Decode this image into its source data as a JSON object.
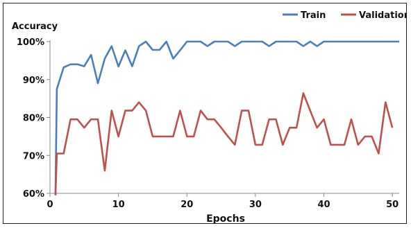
{
  "chart_data": {
    "type": "line",
    "title": "",
    "ylabel": "Accuracy",
    "xlabel": "Epochs",
    "xlim": [
      0,
      51
    ],
    "ylim": [
      60,
      100
    ],
    "x_ticks": [
      0,
      10,
      20,
      30,
      40,
      50
    ],
    "y_ticks": [
      60,
      70,
      80,
      90,
      100
    ],
    "y_tick_labels": [
      "60%",
      "70%",
      "80%",
      "90%",
      "100%"
    ],
    "grid": false,
    "legend_position": "top-right",
    "series": [
      {
        "name": "Train",
        "color": "#4a7ebf",
        "x": [
          0.8,
          1,
          2,
          3,
          4,
          5,
          6,
          7,
          8,
          9,
          10,
          11,
          12,
          13,
          14,
          15,
          16,
          17,
          18,
          19,
          20,
          21,
          22,
          23,
          24,
          25,
          26,
          27,
          28,
          29,
          30,
          31,
          32,
          33,
          34,
          35,
          36,
          37,
          38,
          39,
          40,
          41,
          42,
          43,
          44,
          45,
          46,
          47,
          48,
          49,
          50,
          51
        ],
        "values": [
          59.5,
          87.5,
          93.2,
          94,
          94,
          93.5,
          96.5,
          89,
          95.5,
          98.8,
          93.4,
          97.7,
          93.5,
          98.8,
          100,
          97.8,
          97.8,
          100,
          95.5,
          97.7,
          100,
          100,
          100,
          98.8,
          100,
          100,
          100,
          98.8,
          100,
          100,
          100,
          100,
          98.8,
          100,
          100,
          100,
          100,
          98.8,
          100,
          98.8,
          100,
          100,
          100,
          100,
          100,
          100,
          100,
          100,
          100,
          100,
          100,
          100
        ]
      },
      {
        "name": "Validation",
        "color": "#c0504d",
        "x": [
          0.8,
          1,
          2,
          3,
          4,
          5,
          6,
          7,
          8,
          9,
          10,
          11,
          12,
          13,
          14,
          15,
          16,
          17,
          18,
          19,
          20,
          21,
          22,
          23,
          24,
          25,
          26,
          27,
          28,
          29,
          30,
          31,
          32,
          33,
          34,
          35,
          36,
          37,
          38,
          39,
          40,
          41,
          42,
          43,
          44,
          45,
          46,
          47,
          48,
          49,
          50
        ],
        "values": [
          59.5,
          70.5,
          70.5,
          79.5,
          79.5,
          77.3,
          79.5,
          79.5,
          66,
          81.8,
          75,
          81.8,
          81.8,
          84,
          81.8,
          75,
          75,
          75,
          75,
          81.8,
          75,
          75,
          81.8,
          79.5,
          79.5,
          77.3,
          75,
          72.8,
          81.8,
          81.8,
          72.8,
          72.8,
          79.5,
          79.5,
          72.8,
          77.3,
          77.3,
          86.4,
          81.8,
          77.3,
          79.5,
          72.8,
          72.8,
          72.8,
          79.5,
          72.8,
          75,
          75,
          70.5,
          84,
          77.3
        ]
      }
    ]
  }
}
